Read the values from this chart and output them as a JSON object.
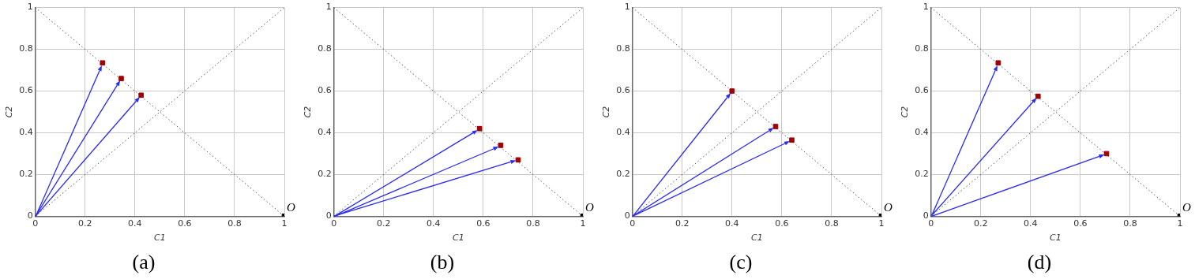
{
  "chart_data": [
    {
      "type": "scatter",
      "title": "(a)",
      "xlabel": "C1",
      "ylabel": "C2",
      "xlim": [
        0,
        1
      ],
      "ylim": [
        0,
        1
      ],
      "xticks": [
        0,
        0.2,
        0.4,
        0.6,
        0.8,
        1
      ],
      "yticks": [
        0,
        0.2,
        0.4,
        0.6,
        0.8,
        1
      ],
      "grid": true,
      "series": [
        {
          "type": "line",
          "line_style": "dotted",
          "marker": "none",
          "color": "#555555",
          "x": [
            0,
            1
          ],
          "values": [
            1,
            0
          ]
        },
        {
          "type": "line",
          "line_style": "dotted",
          "marker": "none",
          "color": "#555555",
          "x": [
            0,
            1
          ],
          "values": [
            0,
            1
          ]
        },
        {
          "type": "scatter",
          "marker": "square",
          "color": "#a00000",
          "x": [
            0.27,
            0.345,
            0.425
          ],
          "values": [
            0.735,
            0.66,
            0.58
          ]
        },
        {
          "type": "scatter",
          "marker": "square",
          "name": "O",
          "color": "#000000",
          "x": [
            1
          ],
          "values": [
            0
          ]
        }
      ]
    },
    {
      "type": "scatter",
      "title": "(b)",
      "xlabel": "C1",
      "ylabel": "C2",
      "xlim": [
        0,
        1
      ],
      "ylim": [
        0,
        1
      ],
      "xticks": [
        0,
        0.2,
        0.4,
        0.6,
        0.8,
        1
      ],
      "yticks": [
        0,
        0.2,
        0.4,
        0.6,
        0.8,
        1
      ],
      "grid": true,
      "series": [
        {
          "type": "line",
          "line_style": "dotted",
          "marker": "none",
          "color": "#555555",
          "x": [
            0,
            1
          ],
          "values": [
            1,
            0
          ]
        },
        {
          "type": "line",
          "line_style": "dotted",
          "marker": "none",
          "color": "#555555",
          "x": [
            0,
            1
          ],
          "values": [
            0,
            1
          ]
        },
        {
          "type": "scatter",
          "marker": "square",
          "color": "#a00000",
          "x": [
            0.585,
            0.67,
            0.74
          ],
          "values": [
            0.42,
            0.34,
            0.27
          ]
        },
        {
          "type": "scatter",
          "marker": "square",
          "name": "O",
          "color": "#000000",
          "x": [
            1
          ],
          "values": [
            0
          ]
        }
      ]
    },
    {
      "type": "scatter",
      "title": "(c)",
      "xlabel": "C1",
      "ylabel": "C2",
      "xlim": [
        0,
        1
      ],
      "ylim": [
        0,
        1
      ],
      "xticks": [
        0,
        0.2,
        0.4,
        0.6,
        0.8,
        1
      ],
      "yticks": [
        0,
        0.2,
        0.4,
        0.6,
        0.8,
        1
      ],
      "grid": true,
      "series": [
        {
          "type": "line",
          "line_style": "dotted",
          "marker": "none",
          "color": "#555555",
          "x": [
            0,
            1
          ],
          "values": [
            1,
            0
          ]
        },
        {
          "type": "line",
          "line_style": "dotted",
          "marker": "none",
          "color": "#555555",
          "x": [
            0,
            1
          ],
          "values": [
            0,
            1
          ]
        },
        {
          "type": "scatter",
          "marker": "square",
          "color": "#a00000",
          "x": [
            0.4,
            0.575,
            0.64
          ],
          "values": [
            0.6,
            0.43,
            0.365
          ]
        },
        {
          "type": "scatter",
          "marker": "square",
          "name": "O",
          "color": "#000000",
          "x": [
            1
          ],
          "values": [
            0
          ]
        }
      ]
    },
    {
      "type": "scatter",
      "title": "(d)",
      "xlabel": "C1",
      "ylabel": "C2",
      "xlim": [
        0,
        1
      ],
      "ylim": [
        0,
        1
      ],
      "xticks": [
        0,
        0.2,
        0.4,
        0.6,
        0.8,
        1
      ],
      "yticks": [
        0,
        0.2,
        0.4,
        0.6,
        0.8,
        1
      ],
      "grid": true,
      "series": [
        {
          "type": "line",
          "line_style": "dotted",
          "marker": "none",
          "color": "#555555",
          "x": [
            0,
            1
          ],
          "values": [
            1,
            0
          ]
        },
        {
          "type": "line",
          "line_style": "dotted",
          "marker": "none",
          "color": "#555555",
          "x": [
            0,
            1
          ],
          "values": [
            0,
            1
          ]
        },
        {
          "type": "scatter",
          "marker": "square",
          "color": "#a00000",
          "x": [
            0.27,
            0.43,
            0.705
          ],
          "values": [
            0.735,
            0.575,
            0.3
          ]
        },
        {
          "type": "scatter",
          "marker": "square",
          "name": "O",
          "color": "#000000",
          "x": [
            1
          ],
          "values": [
            0
          ]
        }
      ]
    }
  ]
}
